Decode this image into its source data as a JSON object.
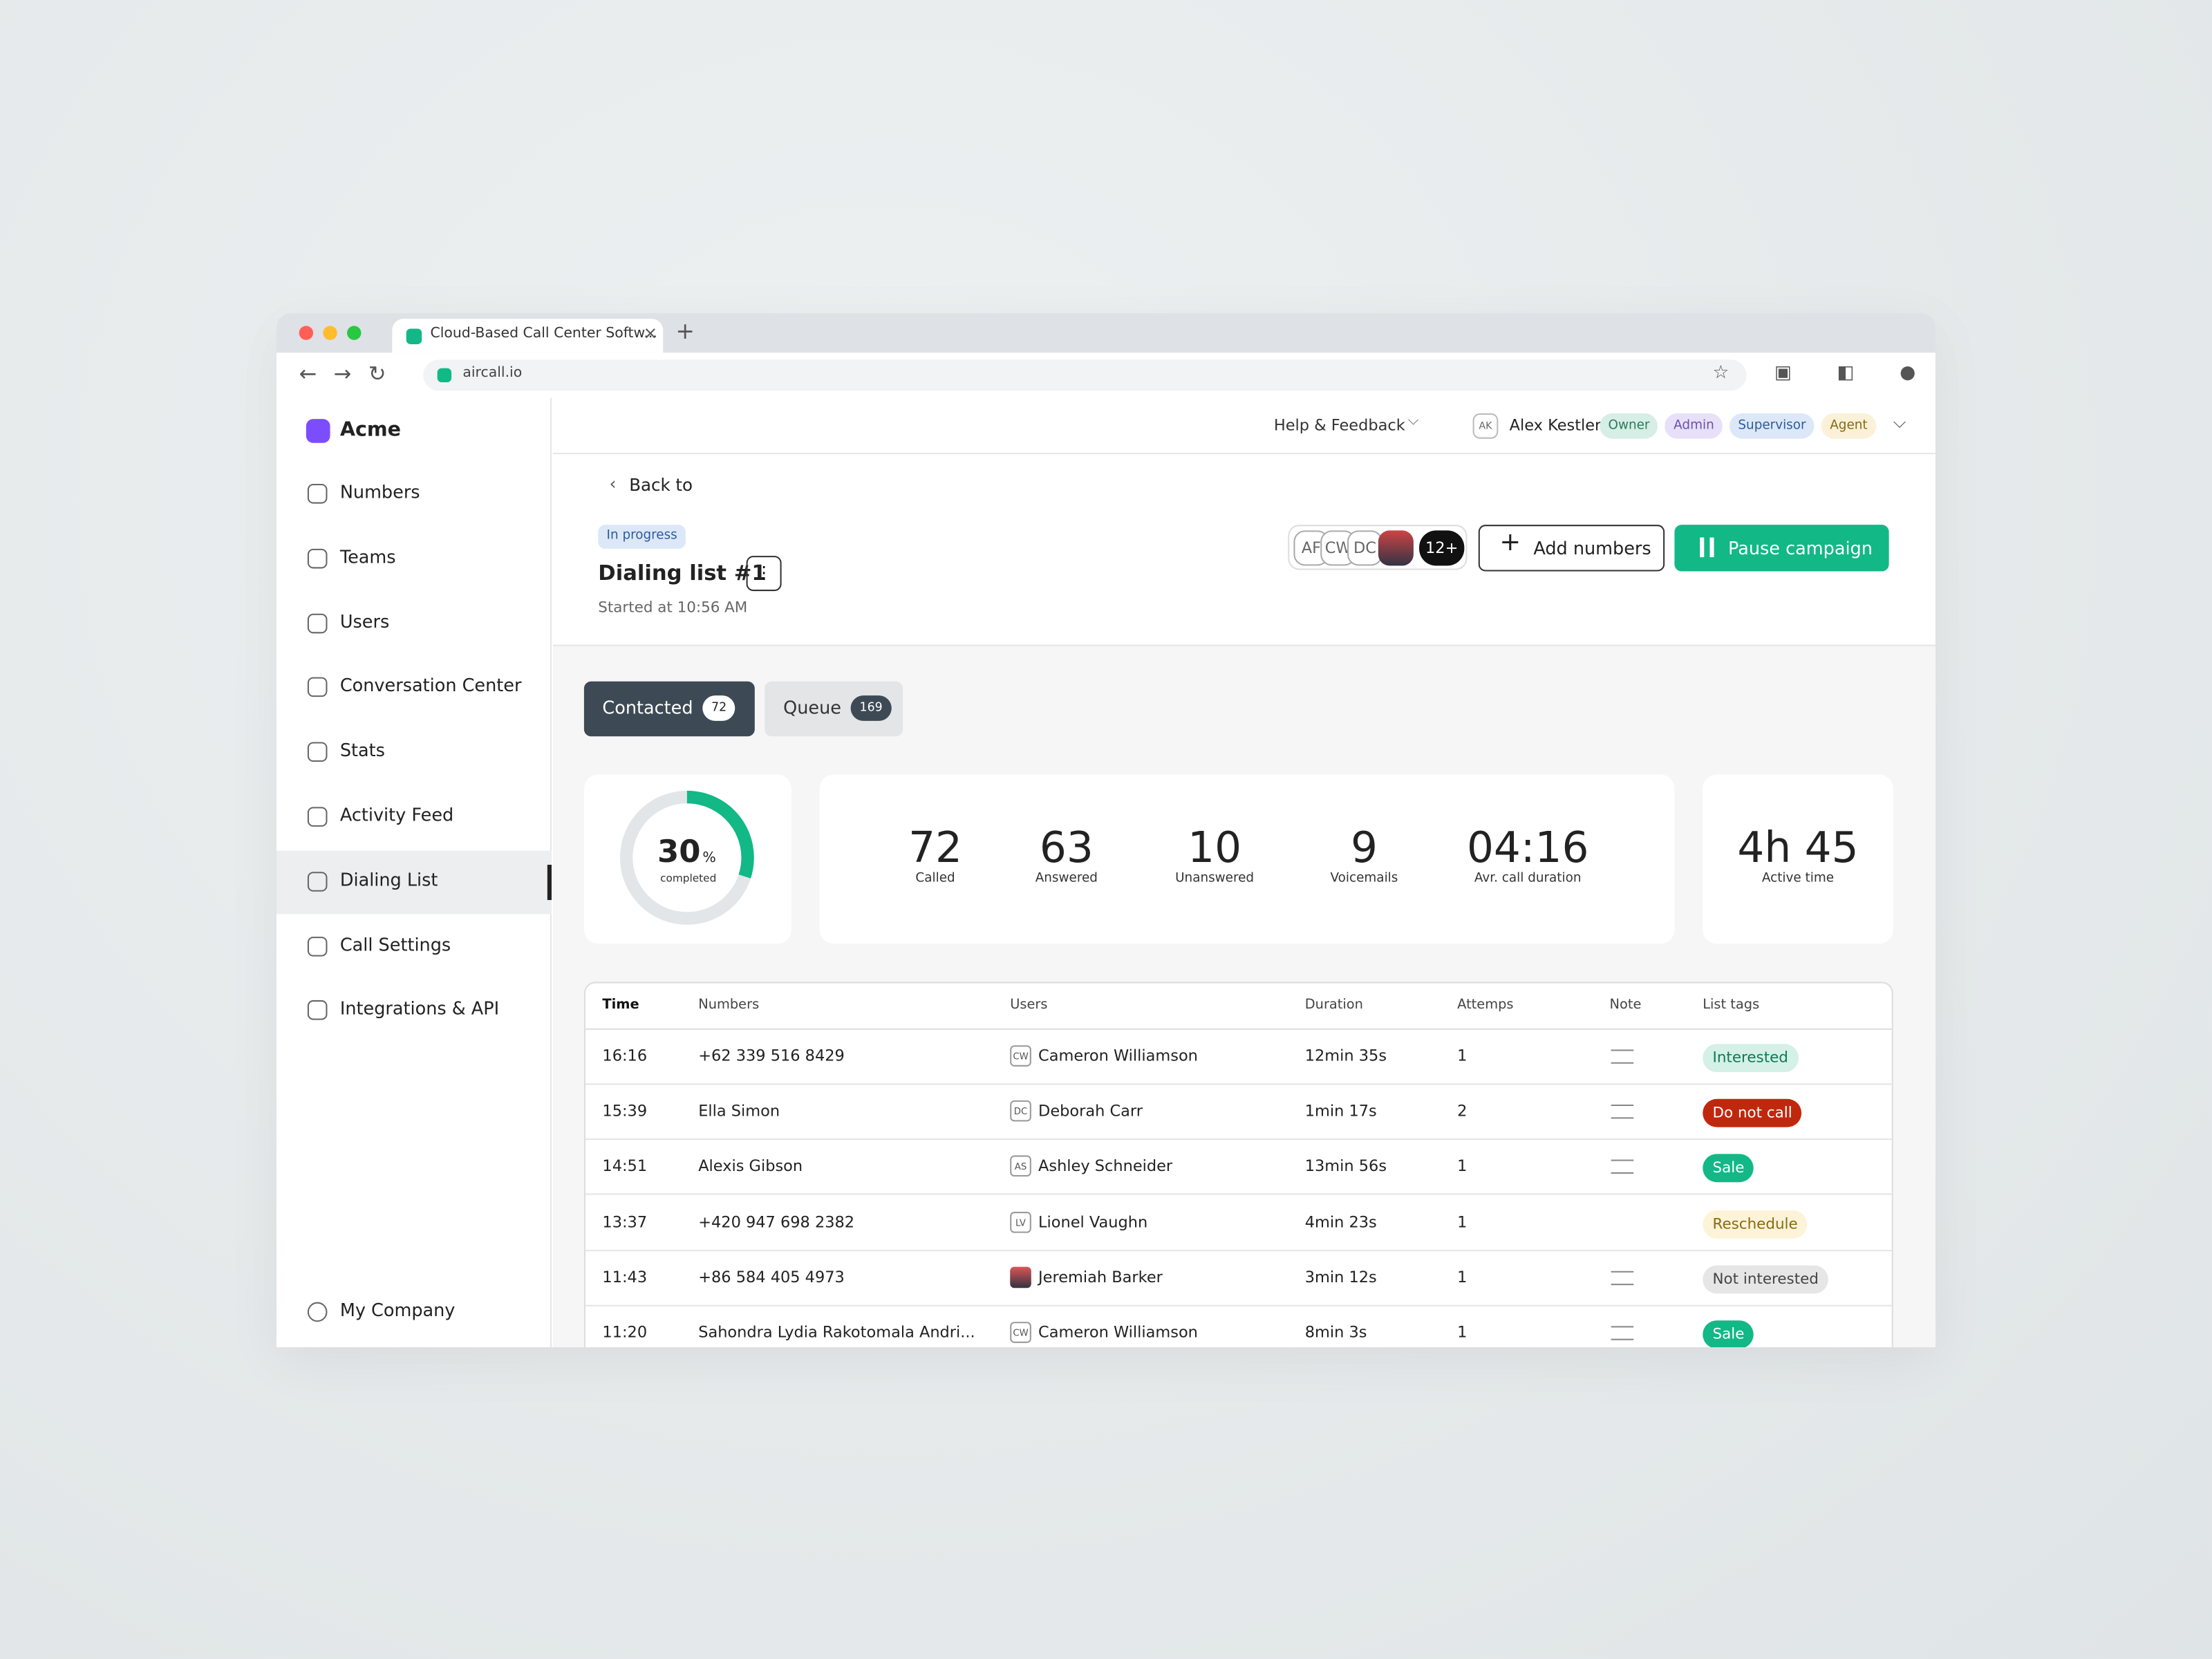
{
  "browser": {
    "tab_title": "Cloud-Based Call Center Softw...",
    "url": "aircall.io"
  },
  "sidebar": {
    "brand": "Acme",
    "nav": [
      "Numbers",
      "Teams",
      "Users",
      "Conversation Center",
      "Stats",
      "Activity Feed",
      "Dialing List",
      "Call Settings",
      "Integrations & API"
    ],
    "active_index": 6,
    "footer": "My Company"
  },
  "topbar": {
    "help": "Help & Feedback",
    "user_initials": "AK",
    "user_name": "Alex Kestler",
    "roles": [
      "Owner",
      "Admin",
      "Supervisor",
      "Agent"
    ]
  },
  "header": {
    "back": "Back to",
    "status": "In progress",
    "title": "Dialing list #1",
    "started": "Started at 10:56 AM",
    "avatars": [
      "AF",
      "CW",
      "DC"
    ],
    "more": "12+",
    "add": "Add numbers",
    "pause": "Pause campaign"
  },
  "tabs": [
    {
      "label": "Contacted",
      "count": 72
    },
    {
      "label": "Queue",
      "count": 169
    }
  ],
  "progress": {
    "value": 30,
    "unit": "%",
    "label": "completed"
  },
  "stats": [
    {
      "value": "72",
      "label": "Called"
    },
    {
      "value": "63",
      "label": "Answered"
    },
    {
      "value": "10",
      "label": "Unanswered"
    },
    {
      "value": "9",
      "label": "Voicemails"
    },
    {
      "value": "04:16",
      "label": "Avr. call duration"
    }
  ],
  "active_time": {
    "value": "4h 45",
    "label": "Active time"
  },
  "table": {
    "columns": [
      "Time",
      "Numbers",
      "Users",
      "Duration",
      "Attemps",
      "Note",
      "List tags"
    ],
    "rows": [
      {
        "time": "16:16",
        "number": "+62 339 516 8429",
        "initials": "CW",
        "user": "Cameron Williamson",
        "duration": "12min 35s",
        "attempts": "1",
        "note": true,
        "tag": "Interested",
        "tag_style": "mint"
      },
      {
        "time": "15:39",
        "number": "Ella Simon",
        "initials": "DC",
        "user": "Deborah Carr",
        "duration": "1min 17s",
        "attempts": "2",
        "note": true,
        "tag": "Do not call",
        "tag_style": "red"
      },
      {
        "time": "14:51",
        "number": "Alexis Gibson",
        "initials": "AS",
        "user": "Ashley Schneider",
        "duration": "13min 56s",
        "attempts": "1",
        "note": true,
        "tag": "Sale",
        "tag_style": "green"
      },
      {
        "time": "13:37",
        "number": "+420 947 698 2382",
        "initials": "LV",
        "user": "Lionel Vaughn",
        "duration": "4min 23s",
        "attempts": "1",
        "note": false,
        "tag": "Reschedule",
        "tag_style": "yellow"
      },
      {
        "time": "11:43",
        "number": "+86 584 405 4973",
        "initials": null,
        "user": "Jeremiah Barker",
        "duration": "3min 12s",
        "attempts": "1",
        "note": true,
        "tag": "Not interested",
        "tag_style": "gray"
      },
      {
        "time": "11:20",
        "number": "Sahondra Lydia Rakotomala Andri...",
        "initials": "CW",
        "user": "Cameron Williamson",
        "duration": "8min 3s",
        "attempts": "1",
        "note": true,
        "tag": "Sale",
        "tag_style": "green"
      }
    ]
  }
}
